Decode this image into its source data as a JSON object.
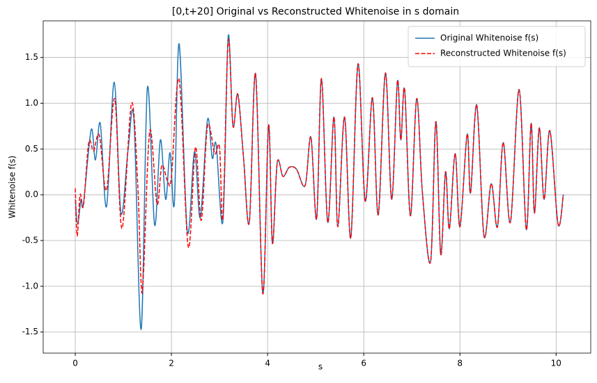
{
  "chart_data": {
    "type": "line",
    "title": "[0,t+20] Original vs Reconstructed Whitenoise in s domain",
    "xlabel": "s",
    "ylabel": "Whitenoise f(s)",
    "xlim": [
      -0.667,
      10.72
    ],
    "ylim": [
      -1.73,
      1.9
    ],
    "xticks": [
      0,
      2,
      4,
      6,
      8,
      10
    ],
    "yticks": [
      -1.5,
      -1.0,
      -0.5,
      0.0,
      0.5,
      1.0,
      1.5
    ],
    "grid": true,
    "legend": "upper right",
    "series": [
      {
        "name": "Original Whitenoise f(s)",
        "color": "#1f77b4",
        "style": "solid",
        "x": [
          0,
          0.05,
          0.12,
          0.17,
          0.33,
          0.42,
          0.52,
          0.65,
          0.81,
          0.95,
          1.1,
          1.22,
          1.37,
          1.5,
          1.65,
          1.77,
          1.88,
          1.97,
          2.06,
          2.16,
          2.33,
          2.48,
          2.6,
          2.75,
          2.85,
          2.93,
          3.07,
          3.18,
          3.28,
          3.38,
          3.5,
          3.62,
          3.75,
          3.9,
          4.02,
          4.1,
          4.2,
          4.32,
          4.45,
          4.6,
          4.78,
          4.9,
          5.02,
          5.12,
          5.25,
          5.38,
          5.46,
          5.6,
          5.73,
          5.88,
          6.03,
          6.18,
          6.3,
          6.45,
          6.58,
          6.7,
          6.77,
          6.85,
          6.97,
          7.1,
          7.22,
          7.39,
          7.5,
          7.6,
          7.7,
          7.78,
          7.9,
          8.0,
          8.15,
          8.22,
          8.35,
          8.5,
          8.65,
          8.78,
          8.9,
          9.05,
          9.23,
          9.38,
          9.48,
          9.55,
          9.65,
          9.75,
          9.87,
          10.04,
          10.15
        ],
        "values": [
          -0.05,
          -0.32,
          -0.05,
          -0.1,
          0.71,
          0.38,
          0.78,
          -0.13,
          1.23,
          -0.2,
          0.5,
          0.82,
          -1.47,
          1.17,
          -0.33,
          0.6,
          -0.05,
          0.46,
          -0.1,
          1.65,
          -0.4,
          0.47,
          -0.25,
          0.82,
          0.4,
          0.55,
          -0.29,
          1.73,
          0.75,
          1.1,
          0.4,
          -0.3,
          1.32,
          -1.08,
          0.76,
          -0.53,
          0.35,
          0.2,
          0.3,
          0.28,
          0.1,
          0.63,
          -0.26,
          1.27,
          -0.3,
          0.85,
          -0.35,
          0.85,
          -0.47,
          1.43,
          -0.07,
          1.06,
          -0.22,
          1.33,
          -0.05,
          1.24,
          0.6,
          1.15,
          -0.23,
          1.05,
          0.02,
          -0.73,
          0.8,
          -0.65,
          0.25,
          -0.37,
          0.45,
          -0.35,
          0.66,
          0.02,
          0.98,
          -0.45,
          0.12,
          -0.35,
          0.57,
          -0.3,
          1.15,
          -0.38,
          0.78,
          -0.2,
          0.73,
          -0.05,
          0.7,
          -0.32,
          0.0
        ]
      },
      {
        "name": "Reconstructed Whitenoise f(s)",
        "color": "#ff0000",
        "style": "dashed",
        "x": [
          0,
          0.04,
          0.1,
          0.17,
          0.28,
          0.38,
          0.5,
          0.65,
          0.82,
          0.97,
          1.17,
          1.3,
          1.37,
          1.42,
          1.55,
          1.7,
          1.8,
          1.92,
          2.0,
          2.16,
          2.35,
          2.5,
          2.62,
          2.75,
          2.9,
          3.0,
          3.07,
          3.18,
          3.28,
          3.38,
          3.5,
          3.62,
          3.75,
          3.9,
          4.02,
          4.1,
          4.2,
          4.32,
          4.45,
          4.6,
          4.78,
          4.9,
          5.02,
          5.12,
          5.25,
          5.38,
          5.46,
          5.6,
          5.73,
          5.88,
          6.03,
          6.18,
          6.3,
          6.45,
          6.58,
          6.7,
          6.77,
          6.85,
          6.97,
          7.1,
          7.22,
          7.39,
          7.5,
          7.6,
          7.7,
          7.78,
          7.9,
          8.0,
          8.15,
          8.22,
          8.35,
          8.5,
          8.65,
          8.78,
          8.9,
          9.05,
          9.23,
          9.38,
          9.48,
          9.55,
          9.65,
          9.75,
          9.87,
          10.04,
          10.15
        ],
        "values": [
          0.07,
          -0.45,
          0.0,
          -0.12,
          0.57,
          0.48,
          0.65,
          0.05,
          1.05,
          -0.37,
          1.0,
          0.1,
          -0.97,
          -0.85,
          0.7,
          -0.1,
          0.32,
          0.15,
          0.2,
          1.26,
          -0.57,
          0.52,
          -0.28,
          0.75,
          0.45,
          0.52,
          -0.25,
          1.68,
          0.75,
          1.1,
          0.4,
          -0.3,
          1.32,
          -1.08,
          0.76,
          -0.53,
          0.35,
          0.2,
          0.3,
          0.28,
          0.1,
          0.63,
          -0.26,
          1.27,
          -0.3,
          0.85,
          -0.35,
          0.85,
          -0.47,
          1.43,
          -0.07,
          1.06,
          -0.22,
          1.33,
          -0.05,
          1.24,
          0.6,
          1.15,
          -0.23,
          1.05,
          0.02,
          -0.73,
          0.8,
          -0.65,
          0.25,
          -0.37,
          0.45,
          -0.35,
          0.66,
          0.02,
          0.98,
          -0.45,
          0.12,
          -0.35,
          0.57,
          -0.3,
          1.15,
          -0.38,
          0.78,
          -0.2,
          0.73,
          -0.05,
          0.7,
          -0.32,
          0.0
        ]
      }
    ]
  }
}
